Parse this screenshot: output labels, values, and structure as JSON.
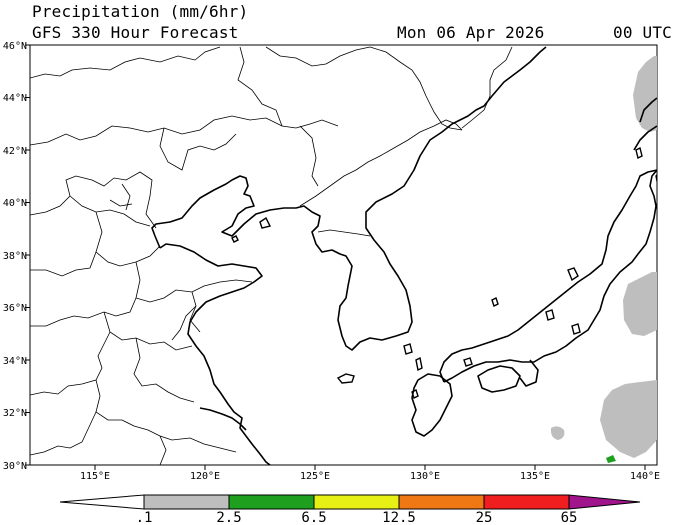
{
  "header": {
    "title_line1": "Precipitation (mm/6hr)",
    "title_line2": "GFS 330 Hour Forecast",
    "date": "Mon 06 Apr 2026",
    "utc": "00 UTC"
  },
  "axes": {
    "lat_labels": [
      "46°N",
      "44°N",
      "42°N",
      "40°N",
      "38°N",
      "36°N",
      "34°N",
      "32°N",
      "30°N"
    ],
    "lon_labels": [
      "115°E",
      "120°E",
      "125°E",
      "130°E",
      "135°E",
      "140°E"
    ]
  },
  "colorbar": {
    "labels": [
      ".1",
      "2.5",
      "6.5",
      "12.5",
      "25",
      "65"
    ],
    "colors": [
      "#ffffff",
      "#bebebe",
      "#1ea01e",
      "#e6f014",
      "#f07814",
      "#f01e1e",
      "#a0148c"
    ]
  },
  "colors": {
    "precip_light": "#bebebe",
    "precip_green": "#1ea01e",
    "coastline": "#000000",
    "borders": "#000000"
  }
}
